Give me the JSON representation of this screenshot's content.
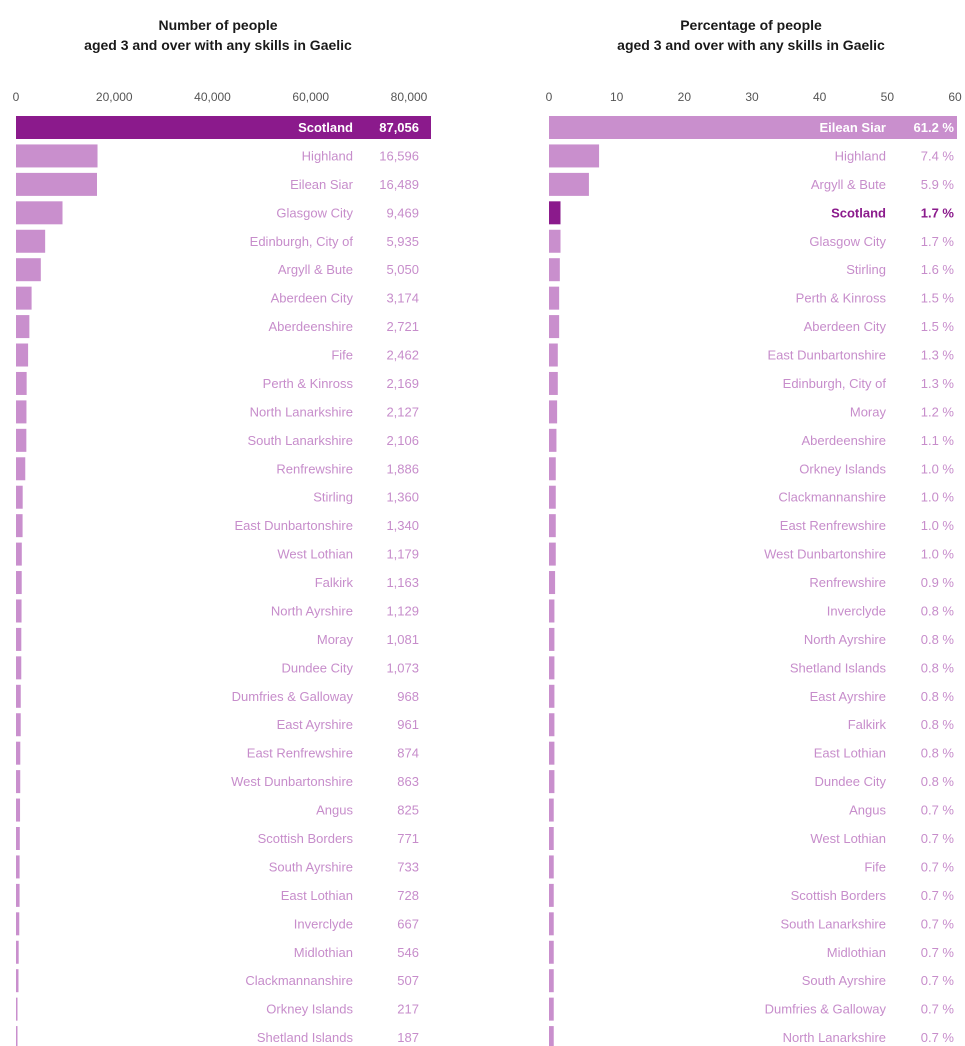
{
  "colors": {
    "highlight": "#8b1a8c",
    "bar": "#c98fcd",
    "label": "#c78dcb",
    "tick": "#555555",
    "title": "#1a1a1a"
  },
  "chart_data": [
    {
      "type": "bar",
      "orientation": "horizontal",
      "title_line1": "Number of people",
      "title_line2": "aged 3 and over with any skills in Gaelic",
      "xlim": [
        0,
        80000
      ],
      "ticks": [
        0,
        20000,
        40000,
        60000,
        80000
      ],
      "tick_labels": [
        "0",
        "20,000",
        "40,000",
        "60,000",
        "80,000"
      ],
      "highlight": "Scotland",
      "categories": [
        "Scotland",
        "Highland",
        "Eilean Siar",
        "Glasgow City",
        "Edinburgh, City of",
        "Argyll & Bute",
        "Aberdeen City",
        "Aberdeenshire",
        "Fife",
        "Perth & Kinross",
        "North Lanarkshire",
        "South Lanarkshire",
        "Renfrewshire",
        "Stirling",
        "East Dunbartonshire",
        "West Lothian",
        "Falkirk",
        "North Ayrshire",
        "Moray",
        "Dundee City",
        "Dumfries & Galloway",
        "East Ayrshire",
        "East Renfrewshire",
        "West Dunbartonshire",
        "Angus",
        "Scottish Borders",
        "South Ayrshire",
        "East Lothian",
        "Inverclyde",
        "Midlothian",
        "Clackmannanshire",
        "Orkney Islands",
        "Shetland Islands"
      ],
      "values": [
        87056,
        16596,
        16489,
        9469,
        5935,
        5050,
        3174,
        2721,
        2462,
        2169,
        2127,
        2106,
        1886,
        1360,
        1340,
        1179,
        1163,
        1129,
        1081,
        1073,
        968,
        961,
        874,
        863,
        825,
        771,
        733,
        728,
        667,
        546,
        507,
        217,
        187
      ],
      "value_labels": [
        "87,056",
        "16,596",
        "16,489",
        "9,469",
        "5,935",
        "5,050",
        "3,174",
        "2,721",
        "2,462",
        "2,169",
        "2,127",
        "2,106",
        "1,886",
        "1,360",
        "1,340",
        "1,179",
        "1,163",
        "1,129",
        "1,081",
        "1,073",
        "968",
        "961",
        "874",
        "863",
        "825",
        "771",
        "733",
        "728",
        "667",
        "546",
        "507",
        "217",
        "187"
      ]
    },
    {
      "type": "bar",
      "orientation": "horizontal",
      "title_line1": "Percentage of people",
      "title_line2": "aged 3 and over with any skills in Gaelic",
      "xlim": [
        0,
        60
      ],
      "ticks": [
        0,
        10,
        20,
        30,
        40,
        50,
        60
      ],
      "tick_labels": [
        "0",
        "10",
        "20",
        "30",
        "40",
        "50",
        "60"
      ],
      "highlight": "Scotland",
      "categories": [
        "Eilean Siar",
        "Highland",
        "Argyll & Bute",
        "Scotland",
        "Glasgow City",
        "Stirling",
        "Perth & Kinross",
        "Aberdeen City",
        "East Dunbartonshire",
        "Edinburgh, City of",
        "Moray",
        "Aberdeenshire",
        "Orkney Islands",
        "Clackmannanshire",
        "East Renfrewshire",
        "West Dunbartonshire",
        "Renfrewshire",
        "Inverclyde",
        "North Ayrshire",
        "Shetland Islands",
        "East Ayrshire",
        "Falkirk",
        "East Lothian",
        "Dundee City",
        "Angus",
        "West Lothian",
        "Fife",
        "Scottish Borders",
        "South Lanarkshire",
        "Midlothian",
        "South Ayrshire",
        "Dumfries & Galloway",
        "North Lanarkshire"
      ],
      "values": [
        61.2,
        7.4,
        5.9,
        1.7,
        1.7,
        1.6,
        1.5,
        1.5,
        1.3,
        1.3,
        1.2,
        1.1,
        1.0,
        1.0,
        1.0,
        1.0,
        0.9,
        0.8,
        0.8,
        0.8,
        0.8,
        0.8,
        0.8,
        0.8,
        0.7,
        0.7,
        0.7,
        0.7,
        0.7,
        0.7,
        0.7,
        0.7,
        0.7
      ],
      "value_labels": [
        "61.2 %",
        "7.4 %",
        "5.9 %",
        "1.7 %",
        "1.7 %",
        "1.6 %",
        "1.5 %",
        "1.5 %",
        "1.3 %",
        "1.3 %",
        "1.2 %",
        "1.1 %",
        "1.0 %",
        "1.0 %",
        "1.0 %",
        "1.0 %",
        "0.9 %",
        "0.8 %",
        "0.8 %",
        "0.8 %",
        "0.8 %",
        "0.8 %",
        "0.8 %",
        "0.8 %",
        "0.7 %",
        "0.7 %",
        "0.7 %",
        "0.7 %",
        "0.7 %",
        "0.7 %",
        "0.7 %",
        "0.7 %",
        "0.7 %"
      ]
    }
  ]
}
